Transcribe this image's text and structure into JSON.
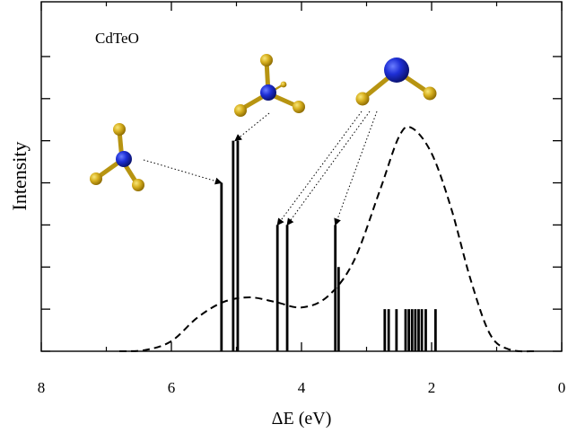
{
  "chart_data": {
    "type": "bar",
    "annotation": "CdTeO",
    "xlabel": "ΔE (eV)",
    "ylabel": "Intensity",
    "xlim": [
      8,
      0
    ],
    "ylim": [
      0,
      8.3
    ],
    "x_tick_labels": [
      "8",
      "6",
      "4",
      "2",
      "0"
    ],
    "x_ticks": [
      8,
      6,
      4,
      2,
      0
    ],
    "y_ticks": [
      0,
      1,
      2,
      3,
      4,
      5,
      6,
      7
    ],
    "series": [
      {
        "type": "stick",
        "points": [
          {
            "x": 5.23,
            "y": 4.0
          },
          {
            "x": 5.05,
            "y": 5.0
          },
          {
            "x": 4.98,
            "y": 5.0
          },
          {
            "x": 4.37,
            "y": 3.0
          },
          {
            "x": 4.22,
            "y": 3.0
          },
          {
            "x": 3.48,
            "y": 3.0
          },
          {
            "x": 3.43,
            "y": 2.0
          },
          {
            "x": 2.72,
            "y": 1.0
          },
          {
            "x": 2.66,
            "y": 1.0
          },
          {
            "x": 2.54,
            "y": 1.0
          },
          {
            "x": 2.4,
            "y": 1.0
          },
          {
            "x": 2.35,
            "y": 1.0
          },
          {
            "x": 2.3,
            "y": 1.0
          },
          {
            "x": 2.25,
            "y": 1.0
          },
          {
            "x": 2.2,
            "y": 1.0
          },
          {
            "x": 2.15,
            "y": 1.0
          },
          {
            "x": 2.09,
            "y": 1.0
          },
          {
            "x": 1.94,
            "y": 1.0
          }
        ]
      },
      {
        "type": "dashed-line",
        "points": [
          {
            "x": 6.8,
            "y": 0.0
          },
          {
            "x": 6.4,
            "y": 0.03
          },
          {
            "x": 6.0,
            "y": 0.24
          },
          {
            "x": 5.6,
            "y": 0.8
          },
          {
            "x": 5.2,
            "y": 1.17
          },
          {
            "x": 4.8,
            "y": 1.28
          },
          {
            "x": 4.4,
            "y": 1.17
          },
          {
            "x": 4.0,
            "y": 1.04
          },
          {
            "x": 3.6,
            "y": 1.3
          },
          {
            "x": 3.2,
            "y": 2.13
          },
          {
            "x": 2.8,
            "y": 3.8
          },
          {
            "x": 2.5,
            "y": 5.1
          },
          {
            "x": 2.3,
            "y": 5.3
          },
          {
            "x": 2.0,
            "y": 4.7
          },
          {
            "x": 1.7,
            "y": 3.4
          },
          {
            "x": 1.4,
            "y": 1.7
          },
          {
            "x": 1.1,
            "y": 0.4
          },
          {
            "x": 0.8,
            "y": 0.04
          },
          {
            "x": 0.4,
            "y": 0.0
          }
        ]
      }
    ],
    "molecule_insets": [
      {
        "id": "left",
        "arrow_target": {
          "x": 5.23,
          "y": 4.0
        }
      },
      {
        "id": "top-left",
        "arrow_target": {
          "x": 5.02,
          "y": 5.0
        }
      },
      {
        "id": "right",
        "arrow_targets": [
          {
            "x": 4.37,
            "y": 3.0
          },
          {
            "x": 4.22,
            "y": 3.0
          },
          {
            "x": 3.48,
            "y": 3.0
          }
        ]
      }
    ],
    "grid": false,
    "legend": "none"
  }
}
